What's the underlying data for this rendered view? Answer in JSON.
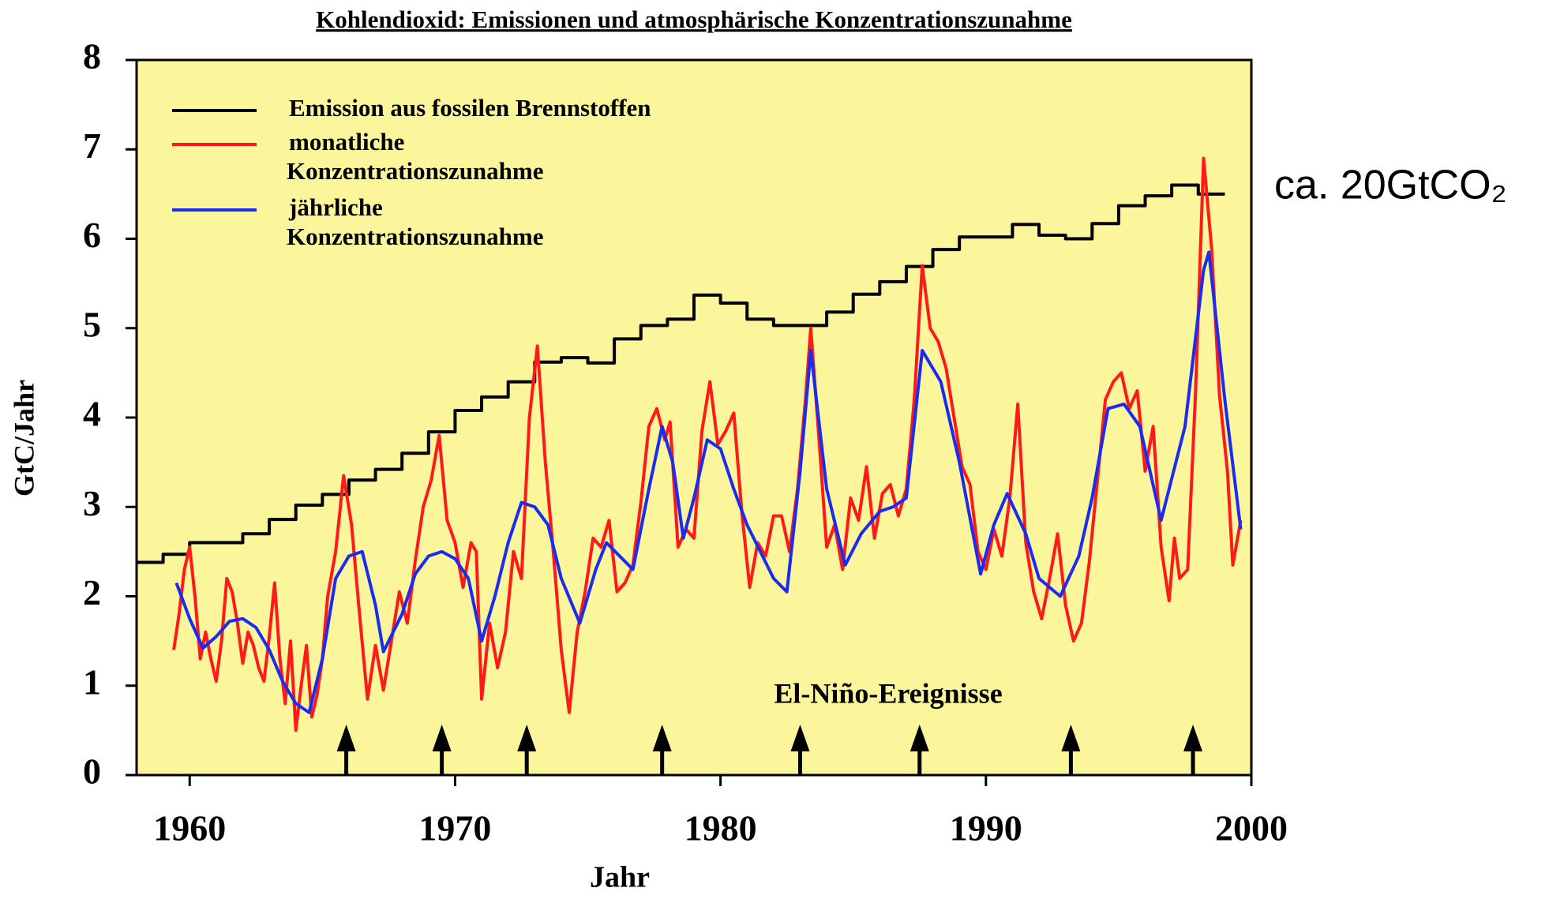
{
  "chart_data": {
    "type": "line",
    "title": "Kohlendioxid: Emissionen und atmosphärische Konzentrationszunahme",
    "x_label": "Jahr",
    "y_label": "GtC/Jahr",
    "xlim": [
      1958,
      2000
    ],
    "ylim": [
      0,
      8
    ],
    "xticks": [
      1960,
      1970,
      1980,
      1990,
      2000
    ],
    "yticks": [
      0,
      1,
      2,
      3,
      4,
      5,
      6,
      7,
      8
    ],
    "background": "#fbf59c",
    "series": [
      {
        "name": "Emission aus fossilen Brennstoffen",
        "color": "#000000",
        "step": true,
        "x": [
          1958,
          1959,
          1960,
          1961,
          1962,
          1963,
          1964,
          1965,
          1966,
          1967,
          1968,
          1969,
          1970,
          1971,
          1972,
          1973,
          1974,
          1975,
          1976,
          1977,
          1978,
          1979,
          1980,
          1981,
          1982,
          1983,
          1984,
          1985,
          1986,
          1987,
          1988,
          1989,
          1990,
          1991,
          1992,
          1993,
          1994,
          1995,
          1996,
          1997,
          1998
        ],
        "values": [
          2.38,
          2.47,
          2.6,
          2.6,
          2.7,
          2.86,
          3.02,
          3.14,
          3.3,
          3.42,
          3.6,
          3.84,
          4.08,
          4.23,
          4.4,
          4.62,
          4.67,
          4.61,
          4.88,
          5.03,
          5.1,
          5.37,
          5.28,
          5.1,
          5.03,
          5.03,
          5.18,
          5.38,
          5.52,
          5.69,
          5.88,
          6.02,
          6.02,
          6.16,
          6.04,
          6.0,
          6.17,
          6.37,
          6.48,
          6.6,
          6.5
        ]
      },
      {
        "name": "monatliche\nKonzentrationszunahme",
        "color": "#ff1a1a",
        "x": [
          1959.4,
          1959.6,
          1959.8,
          1960.0,
          1960.2,
          1960.4,
          1960.6,
          1960.8,
          1961.0,
          1961.2,
          1961.4,
          1961.6,
          1961.8,
          1962.0,
          1962.2,
          1962.4,
          1962.6,
          1962.8,
          1963.0,
          1963.2,
          1963.4,
          1963.6,
          1963.8,
          1964.0,
          1964.2,
          1964.4,
          1964.6,
          1964.8,
          1965.0,
          1965.2,
          1965.5,
          1965.8,
          1966.1,
          1966.4,
          1966.7,
          1967.0,
          1967.3,
          1967.6,
          1967.9,
          1968.2,
          1968.5,
          1968.8,
          1969.1,
          1969.4,
          1969.7,
          1970.0,
          1970.3,
          1970.6,
          1970.8,
          1971.0,
          1971.3,
          1971.6,
          1971.9,
          1972.2,
          1972.5,
          1972.8,
          1973.1,
          1973.4,
          1973.7,
          1974.0,
          1974.3,
          1974.6,
          1974.9,
          1975.2,
          1975.5,
          1975.8,
          1976.1,
          1976.4,
          1976.7,
          1977.0,
          1977.3,
          1977.6,
          1977.9,
          1978.1,
          1978.4,
          1978.7,
          1979.0,
          1979.3,
          1979.6,
          1979.9,
          1980.2,
          1980.5,
          1980.8,
          1981.1,
          1981.4,
          1981.7,
          1982.0,
          1982.3,
          1982.6,
          1982.9,
          1983.2,
          1983.4,
          1983.7,
          1984.0,
          1984.3,
          1984.6,
          1984.9,
          1985.2,
          1985.5,
          1985.8,
          1986.1,
          1986.4,
          1986.7,
          1987.0,
          1987.3,
          1987.6,
          1987.9,
          1988.2,
          1988.5,
          1988.8,
          1989.1,
          1989.4,
          1989.7,
          1990.0,
          1990.3,
          1990.6,
          1990.9,
          1991.2,
          1991.5,
          1991.8,
          1992.1,
          1992.4,
          1992.7,
          1993.0,
          1993.3,
          1993.6,
          1993.9,
          1994.2,
          1994.5,
          1994.8,
          1995.1,
          1995.4,
          1995.7,
          1996.0,
          1996.3,
          1996.6,
          1996.9,
          1997.1,
          1997.3,
          1997.6,
          1997.9,
          1998.2,
          1998.5,
          1998.8,
          1999.1,
          1999.3,
          1999.6
        ],
        "values": [
          1.4,
          1.8,
          2.3,
          2.55,
          2.0,
          1.3,
          1.6,
          1.3,
          1.05,
          1.5,
          2.2,
          2.05,
          1.7,
          1.25,
          1.6,
          1.45,
          1.2,
          1.05,
          1.55,
          2.15,
          1.3,
          0.8,
          1.5,
          0.5,
          1.0,
          1.45,
          0.65,
          0.9,
          1.3,
          2.0,
          2.5,
          3.35,
          2.8,
          1.8,
          0.85,
          1.45,
          0.95,
          1.5,
          2.05,
          1.7,
          2.4,
          3.0,
          3.3,
          3.8,
          2.85,
          2.6,
          2.1,
          2.6,
          2.5,
          0.85,
          1.7,
          1.2,
          1.6,
          2.5,
          2.2,
          4.0,
          4.8,
          3.5,
          2.5,
          1.4,
          0.7,
          1.6,
          2.05,
          2.65,
          2.55,
          2.85,
          2.05,
          2.15,
          2.35,
          3.05,
          3.9,
          4.1,
          3.75,
          3.95,
          2.55,
          2.75,
          2.65,
          3.85,
          4.4,
          3.7,
          3.85,
          4.05,
          2.95,
          2.1,
          2.6,
          2.45,
          2.9,
          2.9,
          2.5,
          3.2,
          4.2,
          5.0,
          3.8,
          2.55,
          2.8,
          2.3,
          3.1,
          2.85,
          3.45,
          2.65,
          3.15,
          3.25,
          2.9,
          3.2,
          4.2,
          5.7,
          5.0,
          4.85,
          4.55,
          4.0,
          3.45,
          3.25,
          2.5,
          2.3,
          2.75,
          2.45,
          3.1,
          4.15,
          2.6,
          2.05,
          1.75,
          2.2,
          2.7,
          1.9,
          1.5,
          1.7,
          2.4,
          3.3,
          4.2,
          4.4,
          4.5,
          4.1,
          4.3,
          3.4,
          3.9,
          2.55,
          1.95,
          2.65,
          2.2,
          2.3,
          4.3,
          6.9,
          5.9,
          4.25,
          3.4,
          2.35,
          2.85
        ]
      },
      {
        "name": "jährliche\nKonzentrationszunahme",
        "color": "#1a2cf0",
        "x": [
          1959.5,
          1960,
          1960.5,
          1961,
          1961.5,
          1962,
          1962.5,
          1963,
          1963.5,
          1964,
          1964.5,
          1965,
          1965.5,
          1966,
          1966.5,
          1967,
          1967.3,
          1968,
          1968.5,
          1969,
          1969.5,
          1970,
          1970.5,
          1971,
          1971.5,
          1972,
          1972.5,
          1973,
          1973.5,
          1974,
          1974.7,
          1975.3,
          1975.7,
          1976.2,
          1976.7,
          1977.3,
          1977.8,
          1978.2,
          1978.6,
          1979,
          1979.5,
          1980,
          1980.5,
          1981,
          1981.5,
          1982,
          1982.5,
          1983,
          1983.4,
          1984,
          1984.7,
          1985.3,
          1986,
          1986.5,
          1987,
          1987.6,
          1988.3,
          1989,
          1989.8,
          1990.3,
          1990.8,
          1991.5,
          1992,
          1992.8,
          1993.5,
          1994,
          1994.6,
          1995.2,
          1995.8,
          1996.6,
          1997.5,
          1998.2,
          1998.4,
          1999,
          1999.6
        ],
        "values": [
          2.15,
          1.75,
          1.42,
          1.55,
          1.72,
          1.75,
          1.65,
          1.4,
          1.05,
          0.8,
          0.7,
          1.3,
          2.2,
          2.45,
          2.5,
          1.9,
          1.38,
          1.8,
          2.25,
          2.45,
          2.5,
          2.42,
          2.2,
          1.5,
          2.0,
          2.6,
          3.05,
          3.0,
          2.8,
          2.2,
          1.7,
          2.3,
          2.6,
          2.45,
          2.3,
          3.2,
          3.9,
          3.5,
          2.65,
          3.1,
          3.75,
          3.65,
          3.2,
          2.8,
          2.5,
          2.2,
          2.05,
          3.4,
          4.75,
          3.2,
          2.35,
          2.7,
          2.95,
          3.0,
          3.1,
          4.75,
          4.4,
          3.5,
          2.25,
          2.8,
          3.15,
          2.7,
          2.2,
          2.0,
          2.45,
          3.1,
          4.1,
          4.15,
          3.9,
          2.85,
          3.9,
          5.65,
          5.85,
          4.2,
          2.75
        ]
      }
    ],
    "annotation": "El-Niño-Ereignisse",
    "events_x": [
      1965.9,
      1969.5,
      1972.7,
      1977.8,
      1983.0,
      1987.5,
      1993.2,
      1997.8
    ],
    "side_note": "ca. 20GtCO₂"
  }
}
